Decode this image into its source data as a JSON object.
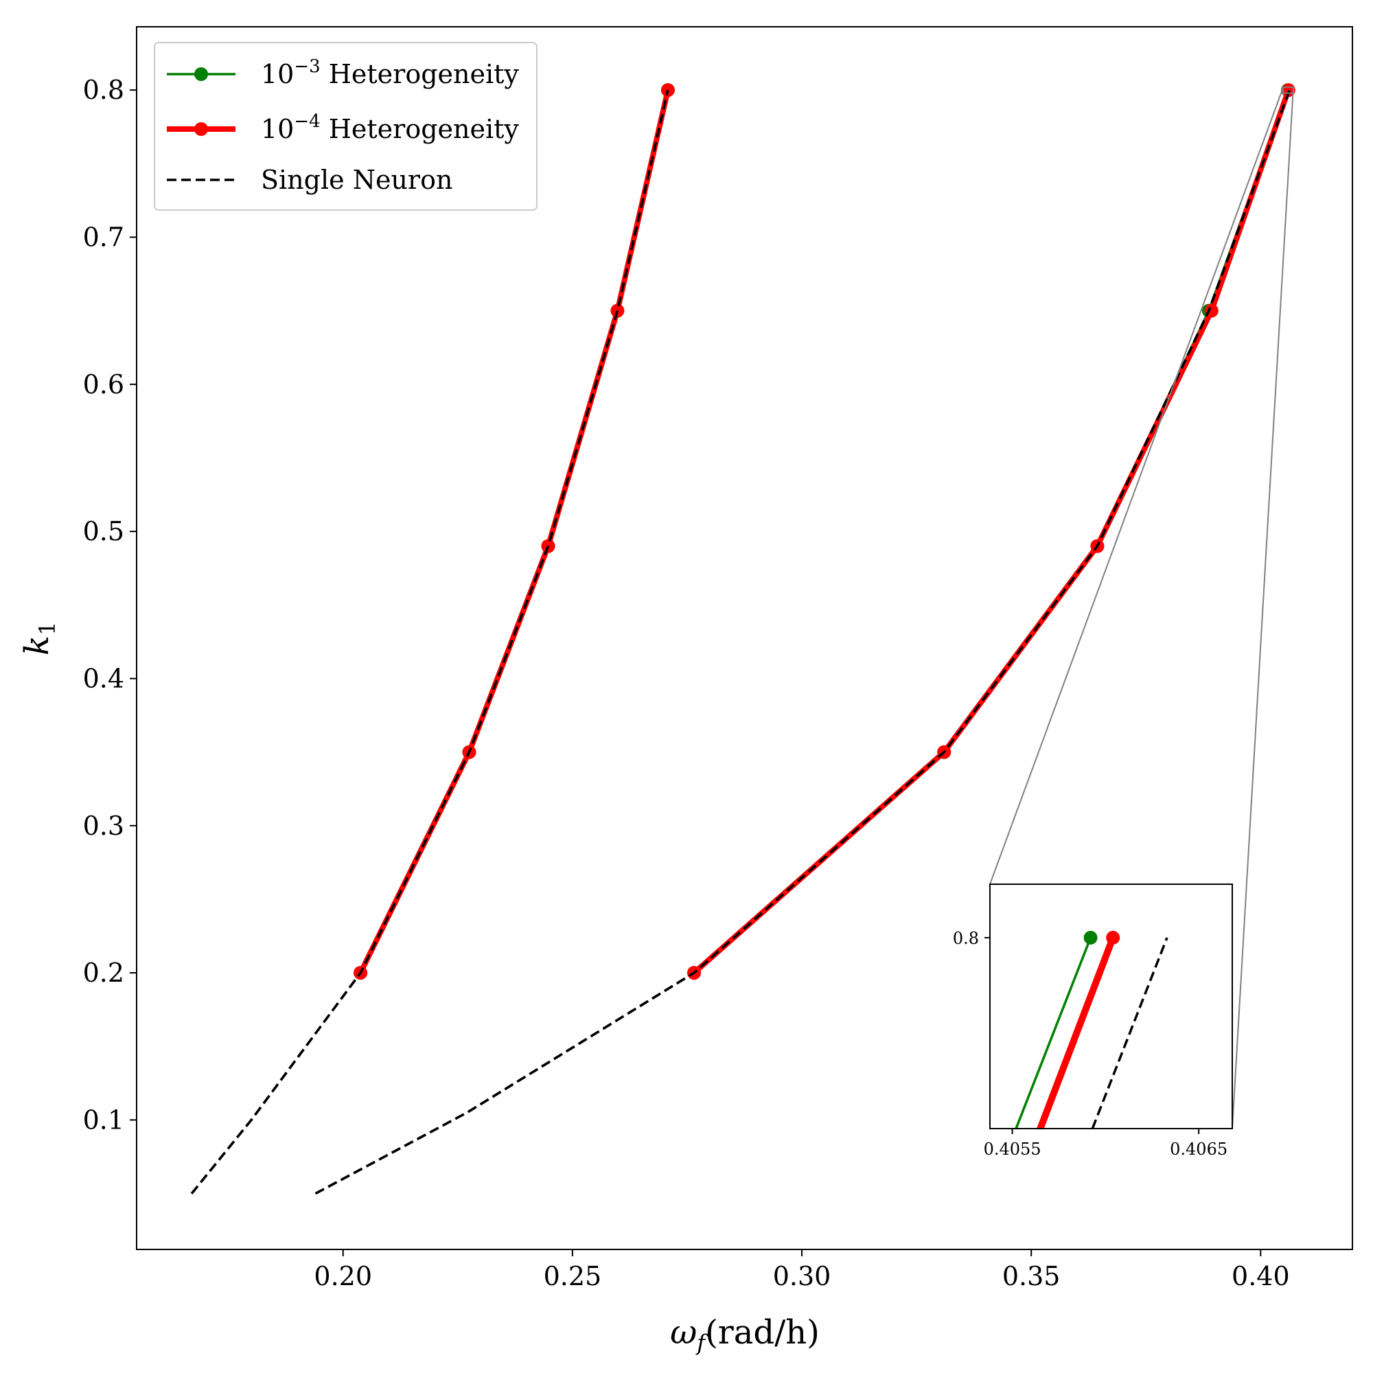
{
  "chart_data": {
    "type": "line",
    "title": "",
    "xlabel": {
      "main": "ω",
      "sub": "f",
      "rest": "(rad/h)"
    },
    "ylabel": {
      "main": "k",
      "sub": "1"
    },
    "xlim": [
      0.155,
      0.42
    ],
    "ylim": [
      0.012,
      0.843
    ],
    "xticks": [
      0.2,
      0.25,
      0.3,
      0.35,
      0.4
    ],
    "xtick_labels": [
      "0.20",
      "0.25",
      "0.30",
      "0.35",
      "0.40"
    ],
    "yticks": [
      0.1,
      0.2,
      0.3,
      0.4,
      0.5,
      0.6,
      0.7,
      0.8
    ],
    "ytick_labels": [
      "0.1",
      "0.2",
      "0.3",
      "0.4",
      "0.5",
      "0.6",
      "0.7",
      "0.8"
    ],
    "grid": false,
    "legend": {
      "location": "upper-left",
      "entries": [
        {
          "pre": "10",
          "sup": "−3",
          "post": " Heterogeneity",
          "color": "#008000",
          "style": "solid-marker"
        },
        {
          "pre": "10",
          "sup": "−4",
          "post": " Heterogeneity",
          "color": "#ff0000",
          "style": "thick-marker"
        },
        {
          "pre": "",
          "sup": "",
          "post": "Single Neuron",
          "color": "#000000",
          "style": "dashed"
        }
      ]
    },
    "series": [
      {
        "name": "10^-3 Heterogeneity",
        "color": "#008000",
        "branches": [
          {
            "x": [
              0.2038,
              0.2275,
              0.2447,
              0.2598,
              0.2708
            ],
            "y": [
              0.2,
              0.35,
              0.49,
              0.65,
              0.8
            ]
          },
          {
            "x": [
              0.2765,
              0.331,
              0.3644,
              0.3887,
              0.40593
            ],
            "y": [
              0.2,
              0.35,
              0.49,
              0.65,
              0.8
            ]
          }
        ]
      },
      {
        "name": "10^-4 Heterogeneity",
        "color": "#ff0000",
        "branches": [
          {
            "x": [
              0.2038,
              0.2275,
              0.2447,
              0.2598,
              0.2708
            ],
            "y": [
              0.2,
              0.35,
              0.49,
              0.65,
              0.8
            ]
          },
          {
            "x": [
              0.2765,
              0.331,
              0.3644,
              0.3893,
              0.40605
            ],
            "y": [
              0.2,
              0.35,
              0.49,
              0.65,
              0.8
            ]
          }
        ]
      },
      {
        "name": "Single Neuron",
        "color": "#000000",
        "branches": [
          {
            "x": [
              0.167,
              0.18,
              0.2038,
              0.2275,
              0.2447,
              0.2598,
              0.2708
            ],
            "y": [
              0.05,
              0.1,
              0.2,
              0.35,
              0.49,
              0.65,
              0.8
            ]
          },
          {
            "x": [
              0.194,
              0.227,
              0.2765,
              0.331,
              0.3644,
              0.3887,
              0.4063
            ],
            "y": [
              0.05,
              0.105,
              0.2,
              0.35,
              0.49,
              0.65,
              0.8
            ]
          }
        ]
      }
    ],
    "inset": {
      "xlim": [
        0.40538,
        0.40668
      ],
      "ylim": [
        0.79975,
        0.80007
      ],
      "xticks": [
        0.4055,
        0.4065
      ],
      "xtick_labels": [
        "0.4055",
        "0.4065"
      ],
      "yticks": [
        0.8
      ],
      "ytick_labels": [
        "0.8"
      ],
      "series": [
        {
          "color": "#008000",
          "x": [
            0.40552,
            0.40592
          ],
          "y": [
            0.79975,
            0.8
          ]
        },
        {
          "color": "#ff0000",
          "x": [
            0.40565,
            0.40604
          ],
          "y": [
            0.79975,
            0.8
          ]
        },
        {
          "color": "#000000",
          "x": [
            0.40593,
            0.40633
          ],
          "y": [
            0.79975,
            0.8
          ]
        }
      ]
    }
  }
}
